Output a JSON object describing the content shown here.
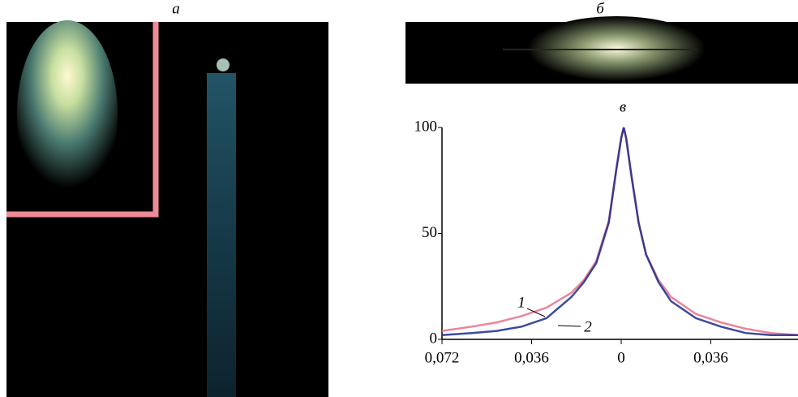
{
  "panels": {
    "a": {
      "label": "а"
    },
    "b": {
      "label": "б"
    }
  },
  "chart_data": {
    "type": "line",
    "title": "в",
    "x": [
      -0.072,
      -0.06,
      -0.05,
      -0.04,
      -0.03,
      -0.02,
      -0.015,
      -0.01,
      -0.005,
      -0.002,
      0,
      0.001,
      0.002,
      0.004,
      0.007,
      0.01,
      0.015,
      0.02,
      0.03,
      0.04,
      0.05,
      0.06,
      0.071
    ],
    "xlim": [
      -0.072,
      0.071
    ],
    "xticks": [
      {
        "value": -0.072,
        "label": "0,072"
      },
      {
        "value": -0.036,
        "label": "0,036"
      },
      0,
      {
        "value": 0.036,
        "label": "0,036"
      }
    ],
    "ylim": [
      0,
      100
    ],
    "yticks": [
      0,
      50,
      100
    ],
    "series": [
      {
        "name": "1",
        "color": "#e8708a",
        "values": [
          4,
          6,
          8,
          11,
          15,
          22,
          28,
          37,
          56,
          80,
          95,
          100,
          95,
          78,
          55,
          40,
          28,
          20,
          12,
          8,
          5,
          3,
          2
        ]
      },
      {
        "name": "2",
        "color": "#1c2a8a",
        "values": [
          2,
          3,
          4,
          6,
          10,
          20,
          27,
          36,
          55,
          80,
          95,
          100,
          95,
          78,
          55,
          40,
          27,
          18,
          10,
          6,
          3,
          2,
          2
        ]
      }
    ]
  }
}
